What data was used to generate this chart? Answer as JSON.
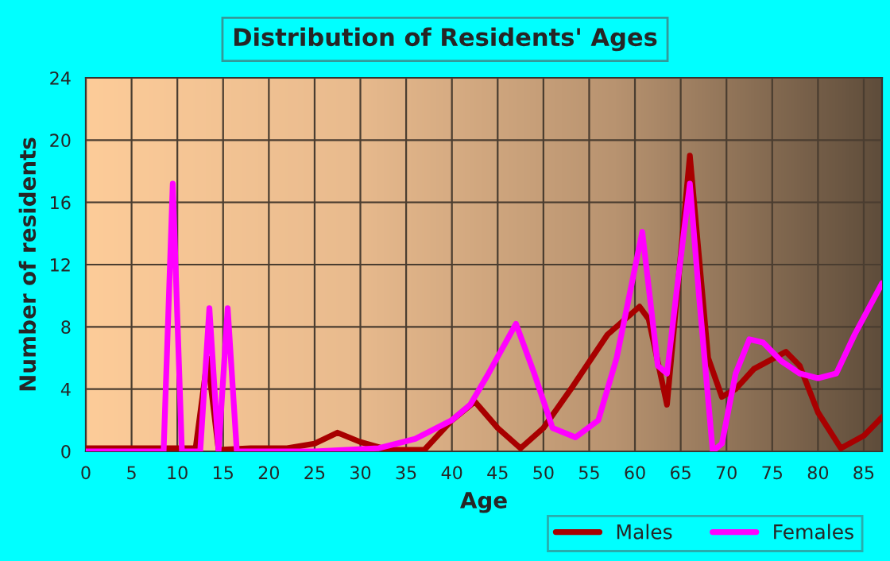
{
  "chart_data": {
    "type": "line",
    "title": "Distribution of Residents' Ages",
    "xlabel": "Age",
    "ylabel": "Number of residents",
    "xlim": [
      0,
      87
    ],
    "xticks": [
      0,
      5,
      10,
      15,
      20,
      25,
      30,
      35,
      40,
      45,
      50,
      55,
      60,
      65,
      70,
      75,
      80,
      85
    ],
    "ylim": [
      0,
      24
    ],
    "yticks": [
      0,
      4,
      8,
      12,
      16,
      20,
      24
    ],
    "grid": true,
    "legend": "bottom",
    "series": [
      {
        "name": "Males",
        "color": "#a80000",
        "x": [
          0,
          5,
          12,
          13.3,
          14.5,
          18,
          22,
          25,
          27.5,
          30,
          33,
          37,
          40,
          42.5,
          45,
          47.5,
          50,
          53,
          57,
          60.5,
          61.5,
          63.5,
          66,
          68,
          69.5,
          71,
          73,
          76.5,
          78,
          80,
          82.5,
          85,
          87
        ],
        "values": [
          0.2,
          0.2,
          0.2,
          6,
          0.1,
          0.2,
          0.2,
          0.5,
          1.2,
          0.6,
          0.1,
          0.1,
          2,
          3.2,
          1.5,
          0.2,
          1.5,
          4,
          7.5,
          9.3,
          8.5,
          3,
          19,
          6,
          3.5,
          4,
          5.3,
          6.4,
          5.5,
          2.5,
          0.2,
          1,
          2.2
        ]
      },
      {
        "name": "Females",
        "color": "#ff00ff",
        "x": [
          0,
          8.5,
          9.5,
          10.5,
          12.5,
          13.5,
          14.5,
          15.5,
          16.5,
          25,
          32,
          36,
          40,
          42,
          44,
          47,
          49,
          51,
          53.5,
          56,
          58,
          60.8,
          62.5,
          63.5,
          64.5,
          66,
          67,
          68.5,
          69.5,
          71,
          72.5,
          74,
          76,
          78,
          80,
          82,
          84,
          87
        ],
        "values": [
          0,
          0,
          17.2,
          0,
          0,
          9.2,
          0,
          9.2,
          0,
          0,
          0.2,
          0.8,
          2,
          3,
          5,
          8.2,
          5,
          1.5,
          0.9,
          2,
          6,
          14.1,
          5.5,
          5,
          10,
          17.2,
          10,
          0,
          0.5,
          5,
          7.2,
          7,
          5.8,
          5,
          4.7,
          5,
          7.5,
          10.8
        ]
      }
    ]
  }
}
